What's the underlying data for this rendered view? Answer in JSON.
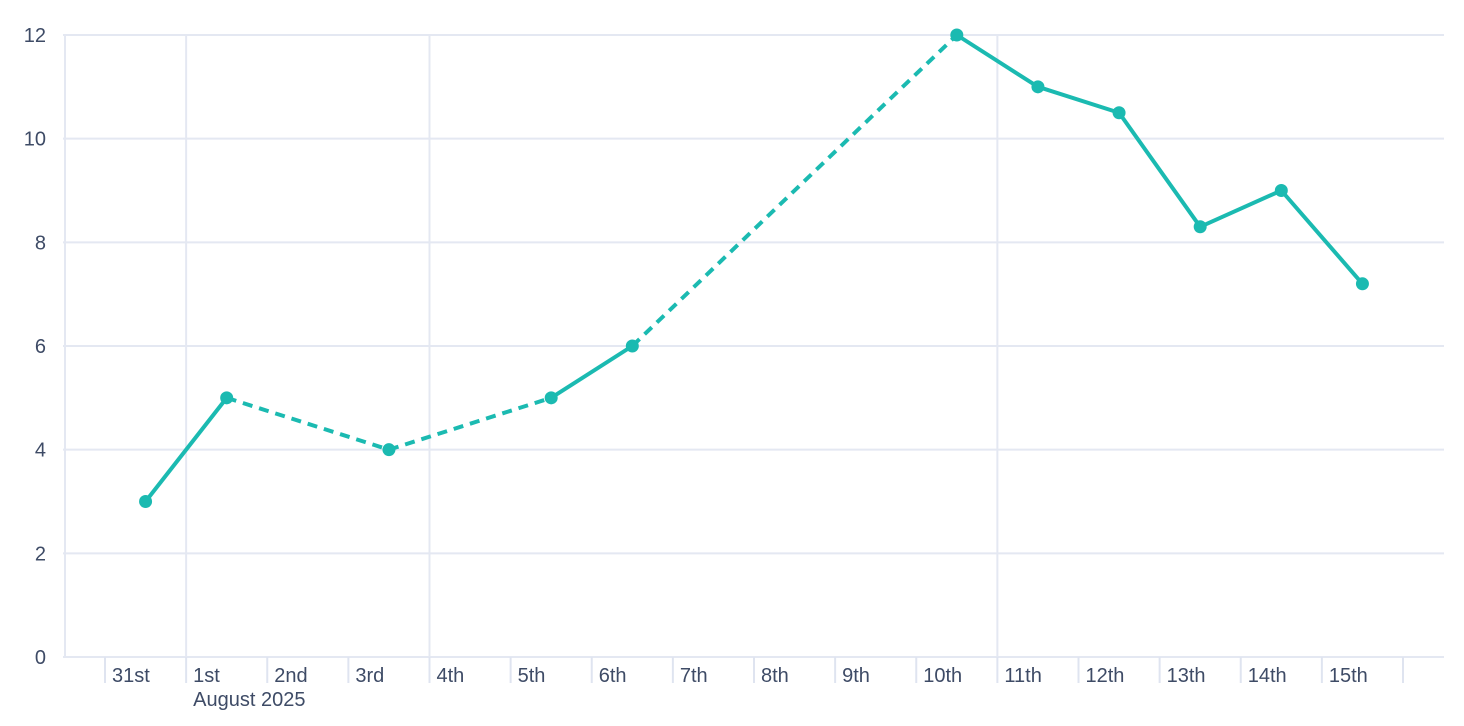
{
  "chart_data": {
    "type": "line",
    "title": "",
    "legend": "none",
    "x_axis": {
      "unit": "day",
      "tick_labels": [
        "31st",
        "1st",
        "2nd",
        "3rd",
        "4th",
        "5th",
        "6th",
        "7th",
        "8th",
        "9th",
        "10th",
        "11th",
        "12th",
        "13th",
        "14th",
        "15th"
      ],
      "secondary_label": "August 2025",
      "secondary_label_under": "1st",
      "extra_unlabeled_tick_after_last": true
    },
    "y_axis": {
      "tick_labels": [
        "0",
        "2",
        "4",
        "6",
        "8",
        "10",
        "12"
      ],
      "min": 0,
      "max": 12,
      "grid": true
    },
    "vertical_gridlines_at": [
      "1st",
      "4th",
      "11th"
    ],
    "series": [
      {
        "points": [
          {
            "date": "31st",
            "day_index": 0,
            "value": 3
          },
          {
            "date": "1st",
            "day_index": 1,
            "value": 5
          },
          {
            "date": "3rd",
            "day_index": 3,
            "value": 4
          },
          {
            "date": "5th",
            "day_index": 5,
            "value": 5
          },
          {
            "date": "6th",
            "day_index": 6,
            "value": 6
          },
          {
            "date": "10th",
            "day_index": 10,
            "value": 12
          },
          {
            "date": "11th",
            "day_index": 11,
            "value": 11
          },
          {
            "date": "12th",
            "day_index": 12,
            "value": 10.5
          },
          {
            "date": "13th",
            "day_index": 13,
            "value": 8.3
          },
          {
            "date": "14th",
            "day_index": 14,
            "value": 9
          },
          {
            "date": "15th",
            "day_index": 15,
            "value": 7.2
          }
        ],
        "dashed_segments": [
          [
            "1st",
            "3rd"
          ],
          [
            "3rd",
            "5th"
          ],
          [
            "6th",
            "10th"
          ]
        ]
      }
    ],
    "colors": {
      "line": "#1bbab1",
      "marker": "#1bbab1",
      "grid": "#e4e8f2",
      "axis_tick": "#dfe4f0",
      "label": "#3e4b66",
      "background": "#ffffff"
    }
  }
}
